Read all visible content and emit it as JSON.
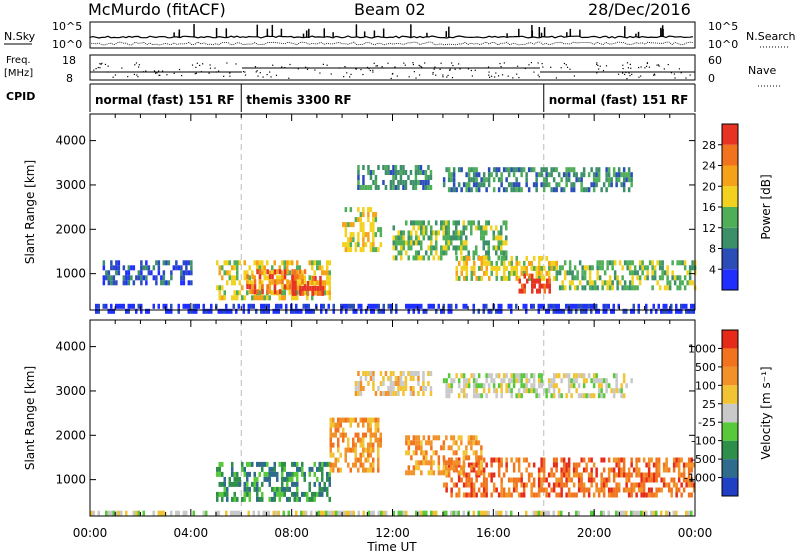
{
  "header": {
    "station": "McMurdo (fitACF)",
    "beam": "Beam 02",
    "date": "28/Dec/2016"
  },
  "strip": {
    "nsky_label": "N.Sky",
    "nsky_ticks": [
      "10^5",
      "10^0"
    ],
    "nsearch_label": "N.Search",
    "nsearch_ticks": [
      "10^5",
      "10^0"
    ],
    "freq_label_1": "Freq.",
    "freq_label_2": "[MHz]",
    "freq_ticks": [
      "18",
      "8"
    ],
    "nave_label": "Nave",
    "nave_ticks": [
      "60",
      "0"
    ],
    "cpid_label": "CPID",
    "modes": [
      {
        "label": "normal (fast) 151 RF",
        "start": 0,
        "end": 6
      },
      {
        "label": "themis 3300 RF",
        "start": 6,
        "end": 18
      },
      {
        "label": "normal (fast) 151 RF",
        "start": 18,
        "end": 24
      }
    ]
  },
  "chart_data": [
    {
      "type": "heatmap",
      "name": "power",
      "xlabel": "Time UT",
      "ylabel": "Slant Range [km]",
      "xlim": [
        0,
        24
      ],
      "ylim": [
        180,
        4600
      ],
      "yticks": [
        "1000",
        "2000",
        "3000",
        "4000"
      ],
      "xtick_labels": [
        "00:00",
        "04:00",
        "08:00",
        "12:00",
        "16:00",
        "20:00",
        "00:00"
      ],
      "colorbar": {
        "label": "Power [dB]",
        "ticks": [
          "4",
          "8",
          "12",
          "16",
          "20",
          "24",
          "28"
        ],
        "colors": [
          "#1e2fff",
          "#2b4db8",
          "#3d8f6a",
          "#4fae58",
          "#f2d21e",
          "#f5a218",
          "#f2731e",
          "#e63323"
        ]
      },
      "regions": [
        {
          "t0": 0.0,
          "t1": 24.0,
          "r0": 200,
          "r1": 320,
          "level": 0
        },
        {
          "t0": 5.0,
          "t1": 9.5,
          "r0": 500,
          "r1": 1300,
          "level": 4
        },
        {
          "t0": 6.2,
          "t1": 8.5,
          "r0": 550,
          "r1": 1100,
          "level": 6
        },
        {
          "t0": 8.0,
          "t1": 9.2,
          "r0": 600,
          "r1": 950,
          "level": 7
        },
        {
          "t0": 10.0,
          "t1": 11.5,
          "r0": 1500,
          "r1": 2500,
          "level": 4
        },
        {
          "t0": 10.5,
          "t1": 13.5,
          "r0": 2900,
          "r1": 3450,
          "level": 2
        },
        {
          "t0": 14.0,
          "t1": 21.5,
          "r0": 2850,
          "r1": 3400,
          "level": 2
        },
        {
          "t0": 12.0,
          "t1": 16.5,
          "r0": 1300,
          "r1": 2200,
          "level": 3
        },
        {
          "t0": 14.5,
          "t1": 18.5,
          "r0": 900,
          "r1": 1400,
          "level": 4
        },
        {
          "t0": 17.0,
          "t1": 18.2,
          "r0": 600,
          "r1": 1000,
          "level": 7
        },
        {
          "t0": 18.5,
          "t1": 24.0,
          "r0": 700,
          "r1": 1300,
          "level": 3
        },
        {
          "t0": 0.5,
          "t1": 4.0,
          "r0": 800,
          "r1": 1300,
          "level": 1
        }
      ]
    },
    {
      "type": "heatmap",
      "name": "velocity",
      "xlabel": "Time UT",
      "ylabel": "Slant Range [km]",
      "xlim": [
        0,
        24
      ],
      "ylim": [
        180,
        4600
      ],
      "yticks": [
        "1000",
        "2000",
        "3000",
        "4000"
      ],
      "xtick_labels": [
        "00:00",
        "04:00",
        "08:00",
        "12:00",
        "16:00",
        "20:00",
        "00:00"
      ],
      "colorbar": {
        "label": "Velocity [m s⁻¹]",
        "ticks": [
          "1000",
          "500",
          "100",
          "25",
          "-25",
          "-100",
          "-500",
          "-1000"
        ],
        "colors": [
          "#1f3fc4",
          "#2e6b8c",
          "#2e8f4a",
          "#58c93a",
          "#c9c9c9",
          "#f2c433",
          "#f29127",
          "#f2731e",
          "#e62a1a"
        ]
      },
      "regions": [
        {
          "t0": 0.0,
          "t1": 24.0,
          "r0": 200,
          "r1": 300,
          "level": 4
        },
        {
          "t0": 5.0,
          "t1": 9.5,
          "r0": 500,
          "r1": 1400,
          "level": 2
        },
        {
          "t0": 9.5,
          "t1": 11.5,
          "r0": 1200,
          "r1": 2400,
          "level": 6
        },
        {
          "t0": 10.5,
          "t1": 13.5,
          "r0": 2900,
          "r1": 3450,
          "level": 5
        },
        {
          "t0": 14.0,
          "t1": 21.5,
          "r0": 2850,
          "r1": 3400,
          "level": 4
        },
        {
          "t0": 14.0,
          "t1": 24.0,
          "r0": 600,
          "r1": 1500,
          "level": 7
        },
        {
          "t0": 12.5,
          "t1": 15.5,
          "r0": 1200,
          "r1": 2000,
          "level": 6
        }
      ]
    }
  ]
}
